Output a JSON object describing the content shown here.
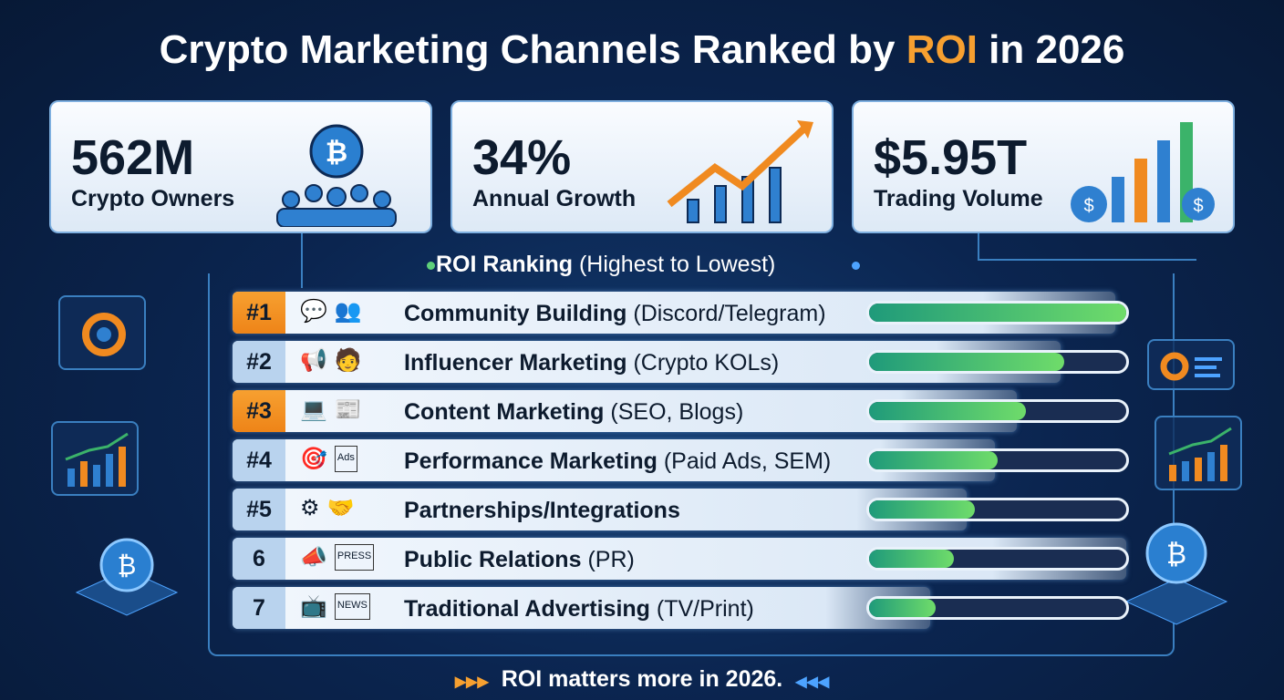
{
  "title": {
    "prefix": "Crypto Marketing Channels Ranked by ",
    "highlight": "ROI",
    "suffix": " in 2026"
  },
  "stats": [
    {
      "value": "562M",
      "label": "Crypto Owners",
      "icon": "bitcoin-crowd-icon"
    },
    {
      "value": "34%",
      "label": "Annual Growth",
      "icon": "growth-chart-icon"
    },
    {
      "value": "$5.95T",
      "label": "Trading Volume",
      "icon": "money-bags-chart-icon"
    }
  ],
  "ranking": {
    "heading": "ROI Ranking",
    "subheading": "(Highest to Lowest)",
    "items": [
      {
        "rank": "#1",
        "name": "Community Building",
        "detail": "(Discord/Telegram)",
        "roi_fill": 1.0,
        "highlight": true,
        "icons": [
          "💬",
          "👥"
        ]
      },
      {
        "rank": "#2",
        "name": "Influencer Marketing",
        "detail": "(Crypto KOLs)",
        "roi_fill": 0.76,
        "highlight": false,
        "icons": [
          "📢",
          "🧑"
        ]
      },
      {
        "rank": "#3",
        "name": "Content Marketing",
        "detail": "(SEO, Blogs)",
        "roi_fill": 0.61,
        "highlight": true,
        "icons": [
          "💻",
          "📰"
        ]
      },
      {
        "rank": "#4",
        "name": "Performance Marketing",
        "detail": "(Paid Ads, SEM)",
        "roi_fill": 0.5,
        "highlight": false,
        "icons": [
          "🎯",
          "Ads"
        ]
      },
      {
        "rank": "#5",
        "name": "Partnerships/Integrations",
        "detail": "",
        "roi_fill": 0.41,
        "highlight": false,
        "icons": [
          "⚙",
          "🤝"
        ]
      },
      {
        "rank": "6",
        "name": "Public Relations",
        "detail": "(PR)",
        "roi_fill": 0.33,
        "highlight": false,
        "icons": [
          "📣",
          "PRESS"
        ]
      },
      {
        "rank": "7",
        "name": "Traditional Advertising",
        "detail": "(TV/Print)",
        "roi_fill": 0.26,
        "highlight": false,
        "icons": [
          "📺",
          "NEWS"
        ]
      }
    ]
  },
  "footer": "ROI matters more in 2026.",
  "colors": {
    "accent": "#f7a030",
    "bar_start": "#1f9a7a",
    "bar_end": "#6fdc6a",
    "background": "#0b2550"
  }
}
